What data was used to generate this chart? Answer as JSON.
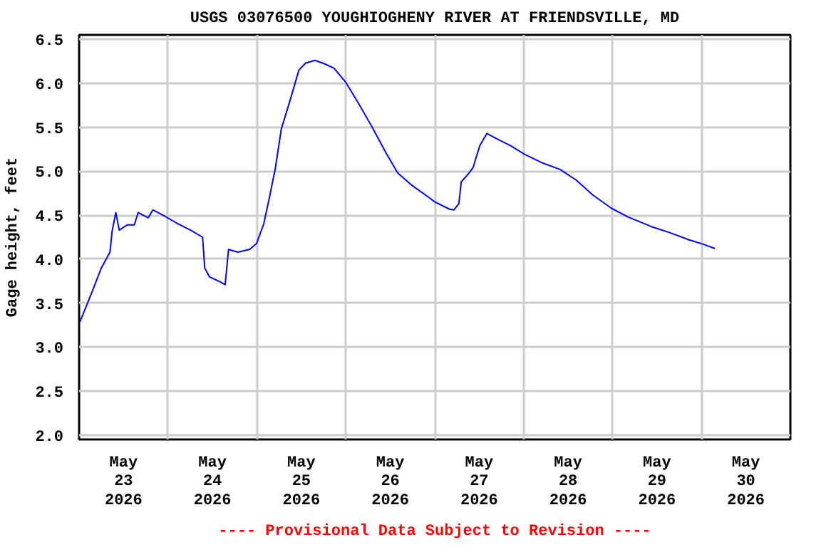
{
  "chart_data": {
    "type": "line",
    "title": "USGS 03076500 YOUGHIOGHENY RIVER AT FRIENDSVILLE, MD",
    "ylabel": "Gage height, feet",
    "annotations": [
      "---- Provisional Data Subject to Revision ----"
    ],
    "series": [
      {
        "color": "#0000ff",
        "x": [
          "2026-05-23T00:15",
          "2026-05-23T03:25",
          "2026-05-23T06:00",
          "2026-05-23T08:20",
          "2026-05-23T08:55",
          "2026-05-23T09:55",
          "2026-05-23T10:50",
          "2026-05-23T13:00",
          "2026-05-23T14:55",
          "2026-05-23T15:55",
          "2026-05-23T18:40",
          "2026-05-23T19:55",
          "2026-05-23T23:05",
          "2026-05-24T02:20",
          "2026-05-24T06:05",
          "2026-05-24T09:20",
          "2026-05-24T09:55",
          "2026-05-24T11:10",
          "2026-05-24T13:40",
          "2026-05-24T15:25",
          "2026-05-24T16:20",
          "2026-05-24T18:50",
          "2026-05-24T22:00",
          "2026-05-24T23:55",
          "2026-05-25T01:50",
          "2026-05-25T03:25",
          "2026-05-25T05:00",
          "2026-05-25T06:35",
          "2026-05-25T08:50",
          "2026-05-25T11:20",
          "2026-05-25T13:10",
          "2026-05-25T15:40",
          "2026-05-25T18:20",
          "2026-05-25T20:50",
          "2026-05-26T00:00",
          "2026-05-26T03:10",
          "2026-05-26T07:00",
          "2026-05-26T10:50",
          "2026-05-26T14:00",
          "2026-05-26T17:50",
          "2026-05-26T22:10",
          "2026-05-27T00:05",
          "2026-05-27T03:55",
          "2026-05-27T05:10",
          "2026-05-27T06:30",
          "2026-05-27T07:10",
          "2026-05-27T09:05",
          "2026-05-27T10:20",
          "2026-05-27T12:10",
          "2026-05-27T14:05",
          "2026-05-27T16:40",
          "2026-05-27T20:30",
          "2026-05-28T00:20",
          "2026-05-28T05:20",
          "2026-05-28T09:50",
          "2026-05-28T14:10",
          "2026-05-28T18:40",
          "2026-05-28T23:40",
          "2026-05-29T04:10",
          "2026-05-29T10:30",
          "2026-05-29T15:35",
          "2026-05-29T20:40",
          "2026-05-30T00:30",
          "2026-05-30T03:40"
        ],
        "values": [
          3.29,
          3.62,
          3.9,
          4.08,
          4.32,
          4.53,
          4.33,
          4.39,
          4.39,
          4.53,
          4.47,
          4.56,
          4.49,
          4.41,
          4.33,
          4.25,
          3.9,
          3.8,
          3.75,
          3.71,
          4.11,
          4.08,
          4.11,
          4.18,
          4.4,
          4.71,
          5.04,
          5.48,
          5.79,
          6.15,
          6.23,
          6.26,
          6.22,
          6.17,
          6.01,
          5.79,
          5.51,
          5.21,
          4.98,
          4.84,
          4.71,
          4.65,
          4.57,
          4.56,
          4.63,
          4.88,
          4.97,
          5.04,
          5.29,
          5.43,
          5.37,
          5.29,
          5.19,
          5.09,
          5.02,
          4.9,
          4.73,
          4.58,
          4.48,
          4.37,
          4.3,
          4.22,
          4.17,
          4.12
        ]
      }
    ],
    "xlim": [
      "2026-05-23",
      "2026-05-31"
    ],
    "xticks": [
      {
        "value": "2026-05-23T12:00",
        "label": "May\n23\n2026"
      },
      {
        "value": "2026-05-24T12:00",
        "label": "May\n24\n2026"
      },
      {
        "value": "2026-05-25T12:00",
        "label": "May\n25\n2026"
      },
      {
        "value": "2026-05-26T12:00",
        "label": "May\n26\n2026"
      },
      {
        "value": "2026-05-27T12:00",
        "label": "May\n27\n2026"
      },
      {
        "value": "2026-05-28T12:00",
        "label": "May\n28\n2026"
      },
      {
        "value": "2026-05-29T12:00",
        "label": "May\n29\n2026"
      },
      {
        "value": "2026-05-30T12:00",
        "label": "May\n30\n2026"
      },
      {
        "value": "2026-05-24",
        "label": null
      },
      {
        "value": "2026-05-25",
        "label": null
      },
      {
        "value": "2026-05-26",
        "label": null
      },
      {
        "value": "2026-05-27",
        "label": null
      },
      {
        "value": "2026-05-28",
        "label": null
      },
      {
        "value": "2026-05-29",
        "label": null
      },
      {
        "value": "2026-05-30",
        "label": null
      }
    ],
    "ylim": [
      1.95,
      6.55
    ],
    "yticks": [
      {
        "value": 2.0,
        "label": "2.0"
      },
      {
        "value": 2.5,
        "label": "2.5"
      },
      {
        "value": 3.0,
        "label": "3.0"
      },
      {
        "value": 3.5,
        "label": "3.5"
      },
      {
        "value": 4.0,
        "label": "4.0"
      },
      {
        "value": 4.5,
        "label": "4.5"
      },
      {
        "value": 5.0,
        "label": "5.0"
      },
      {
        "value": 5.5,
        "label": "5.5"
      },
      {
        "value": 6.0,
        "label": "6.0"
      },
      {
        "value": 6.5,
        "label": "6.5"
      }
    ],
    "grid": true,
    "marker": "none",
    "line_style": "solid"
  }
}
